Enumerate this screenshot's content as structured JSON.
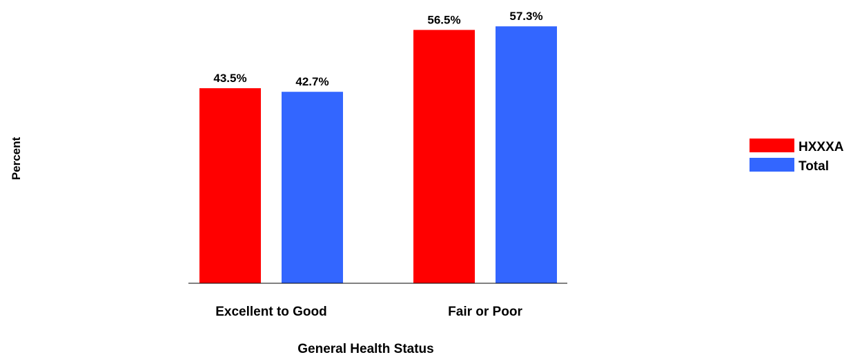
{
  "chart_data": {
    "type": "bar",
    "xlabel": "General Health Status",
    "ylabel": "Percent",
    "categories": [
      "Excellent to Good",
      "Fair or Poor"
    ],
    "series": [
      {
        "name": "HXXXA",
        "color": "#ff0000",
        "values": [
          43.5,
          56.5
        ],
        "labels": [
          "43.5%",
          "56.5%"
        ]
      },
      {
        "name": "Total",
        "color": "#3366ff",
        "values": [
          42.7,
          57.3
        ],
        "labels": [
          "42.7%",
          "57.3%"
        ]
      }
    ],
    "ylim": [
      0,
      60
    ],
    "grid": false,
    "legend_position": "right"
  }
}
